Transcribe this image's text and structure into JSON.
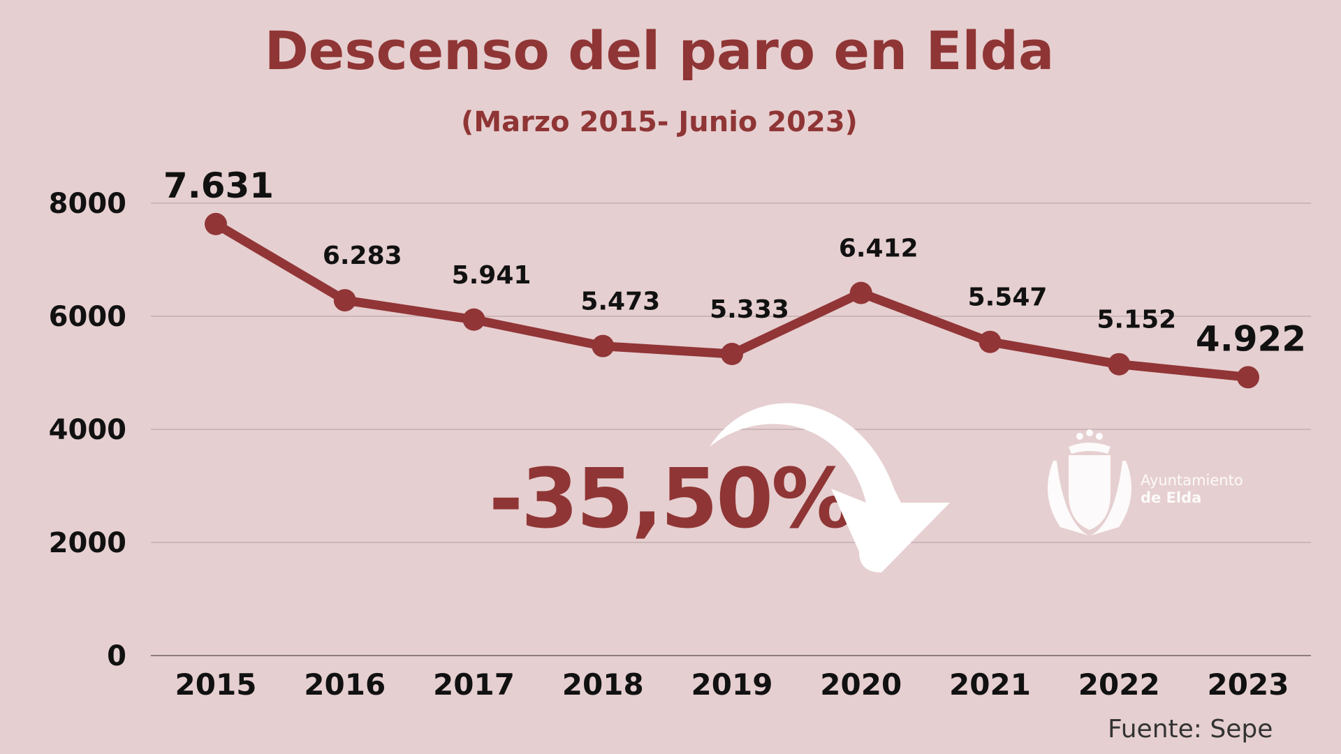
{
  "chart_data": {
    "type": "line",
    "title": "Descenso del paro en Elda",
    "subtitle": "(Marzo 2015- Junio 2023)",
    "categories": [
      "2015",
      "2016",
      "2017",
      "2018",
      "2019",
      "2020",
      "2021",
      "2022",
      "2023"
    ],
    "values": [
      7631,
      6283,
      5941,
      5473,
      5333,
      6412,
      5547,
      5152,
      4922
    ],
    "data_labels": [
      "7.631",
      "6.283",
      "5.941",
      "5.473",
      "5.333",
      "6.412",
      "5.547",
      "5.152",
      "4.922"
    ],
    "yticks": [
      0,
      2000,
      4000,
      6000,
      8000
    ],
    "ylim": [
      0,
      8000
    ],
    "grid": true,
    "line_color": "#913537",
    "annotation": "-35,50%",
    "source": "Fuente: Sepe"
  },
  "logo": {
    "line1": "Ayuntamiento",
    "line2": "de Elda"
  }
}
